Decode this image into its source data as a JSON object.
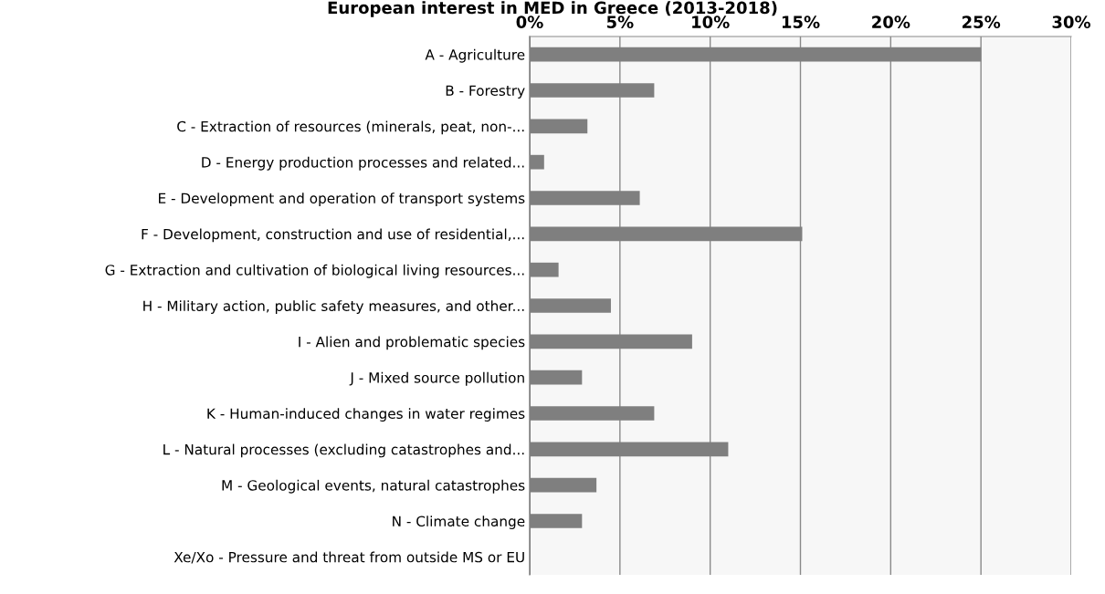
{
  "chart_data": {
    "type": "bar",
    "orientation": "horizontal",
    "title": "European interest in MED in Greece (2013-2018)",
    "categories": [
      "A - Agriculture",
      "B - Forestry",
      "C - Extraction of resources (minerals, peat, non-...",
      "D - Energy production processes and related...",
      "E - Development and operation of transport systems",
      "F - Development, construction and use of residential,...",
      "G - Extraction and cultivation of biological living resources...",
      "H - Military action, public safety measures, and other...",
      "I - Alien and problematic species",
      "J - Mixed source pollution",
      "K - Human-induced changes in water regimes",
      "L - Natural processes (excluding catastrophes and...",
      "M - Geological events, natural catastrophes",
      "N - Climate change",
      "Xe/Xo - Pressure and threat from outside MS or EU"
    ],
    "values": [
      25.0,
      6.9,
      3.2,
      0.8,
      6.1,
      15.1,
      1.6,
      4.5,
      9.0,
      2.9,
      6.9,
      11.0,
      3.7,
      2.9,
      0
    ],
    "color": "#7f7f7f",
    "xlim": [
      0,
      30
    ],
    "xticks": [
      {
        "value": 0,
        "label": "0%"
      },
      {
        "value": 5,
        "label": "5%"
      },
      {
        "value": 10,
        "label": "10%"
      },
      {
        "value": 15,
        "label": "15%"
      },
      {
        "value": 20,
        "label": "20%"
      },
      {
        "value": 25,
        "label": "25%"
      },
      {
        "value": 30,
        "label": "30%"
      }
    ],
    "grid": "x"
  }
}
